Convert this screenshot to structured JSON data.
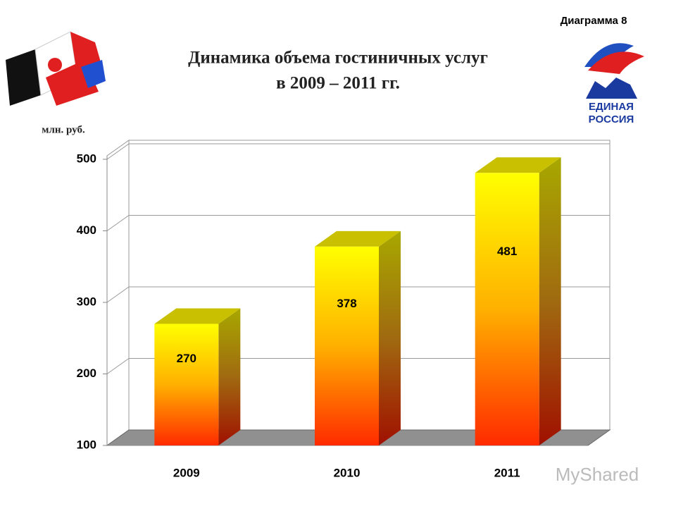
{
  "chart_data": {
    "type": "bar3d",
    "title_lines": [
      "Динамика объема гостиничных услуг",
      "в 2009 – 2011 гг."
    ],
    "tag": "Диаграмма 8",
    "unit_label": "млн. руб.",
    "logo_text": [
      "ЕДИНАЯ",
      "РОССИЯ"
    ],
    "watermark": "MyShared",
    "categories": [
      "2009",
      "2010",
      "2011"
    ],
    "values": [
      270,
      378,
      481
    ],
    "color": "#ffff00",
    "ylim": [
      100,
      500
    ],
    "yticks": [
      100,
      200,
      300,
      400,
      500
    ],
    "grid": true
  }
}
